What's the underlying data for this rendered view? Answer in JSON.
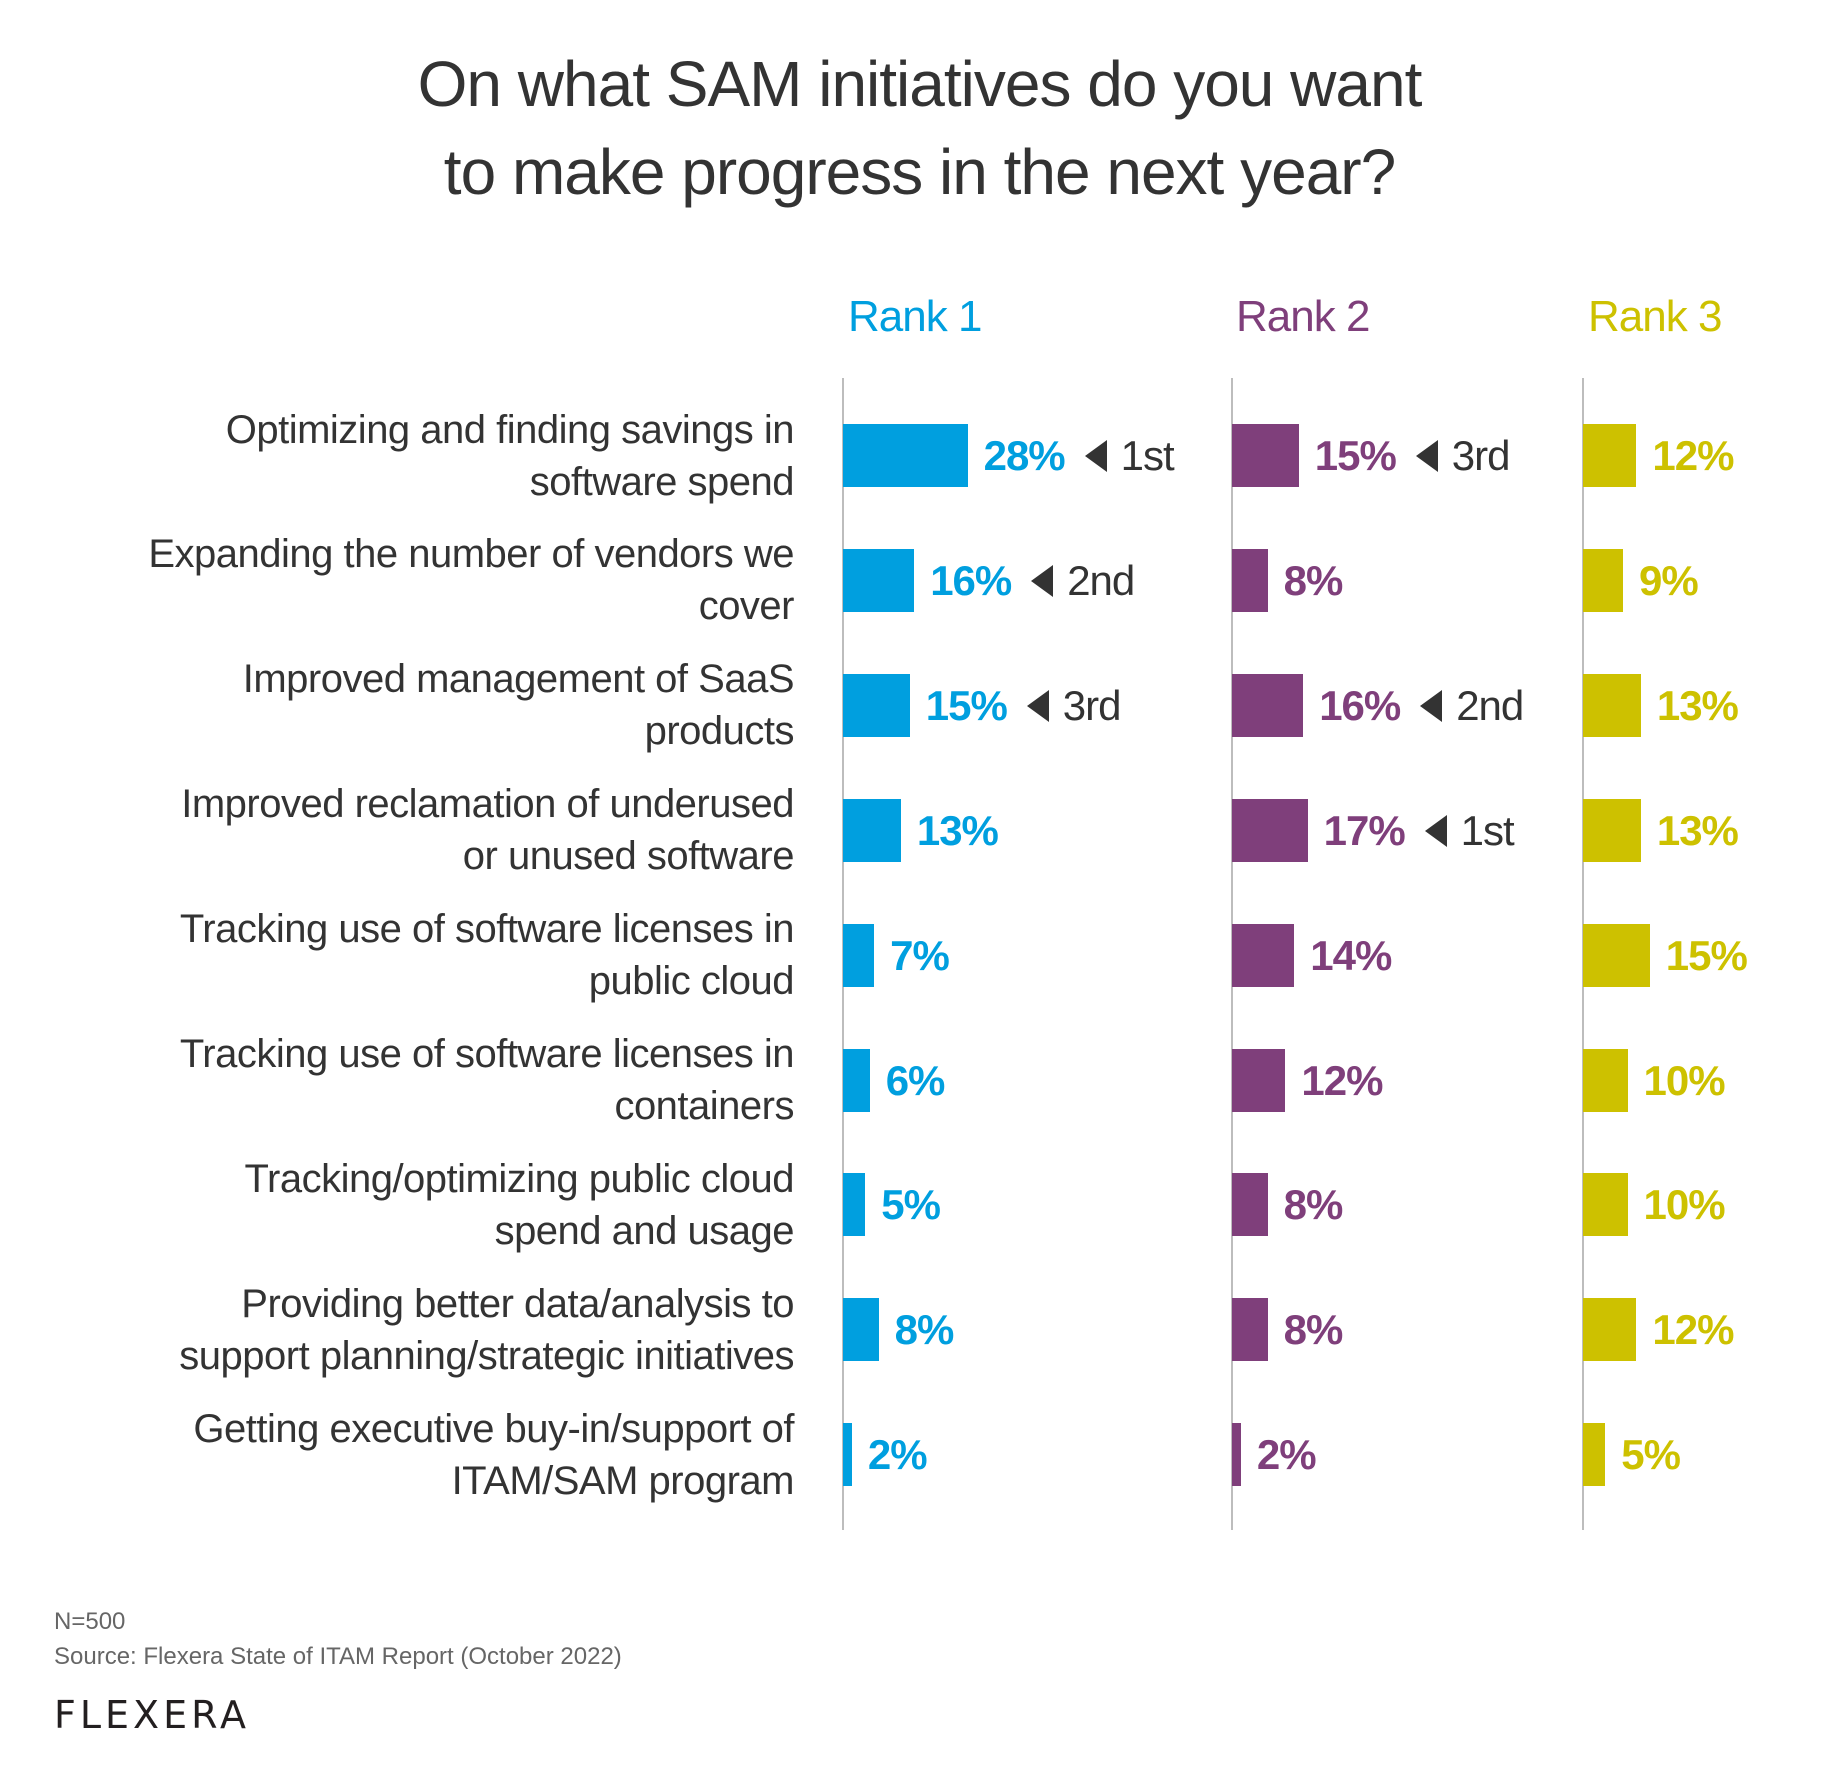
{
  "colors": {
    "rank1": "#009fdf",
    "rank2": "#7f3f7b",
    "rank3": "#cdc100",
    "text": "#333333",
    "annotation": "#333333"
  },
  "chart_data": {
    "type": "bar",
    "orientation": "horizontal",
    "title": "On what SAM initiatives do you want to make progress in the next year?",
    "title_lines": [
      "On what SAM initiatives do you want",
      "to make progress in the next year?"
    ],
    "categories": [
      "Optimizing and finding savings in software spend",
      "Expanding the number of vendors we cover",
      "Improved management of SaaS products",
      "Improved reclamation of underused or unused software",
      "Tracking use of software licenses in public cloud",
      "Tracking use of software licenses in containers",
      "Tracking/optimizing public cloud spend and usage",
      "Providing better data/analysis to support planning/strategic initiatives",
      "Getting executive buy-in/support of ITAM/SAM program"
    ],
    "category_lines": [
      [
        "Optimizing and finding savings in",
        "software spend"
      ],
      [
        "Expanding the number of vendors we",
        "cover"
      ],
      [
        "Improved management of SaaS",
        "products"
      ],
      [
        "Improved reclamation of underused",
        "or unused software"
      ],
      [
        "Tracking use of software licenses in",
        "public cloud"
      ],
      [
        "Tracking use of software licenses in",
        "containers"
      ],
      [
        "Tracking/optimizing public cloud",
        "spend and usage"
      ],
      [
        "Providing better data/analysis to",
        "support planning/strategic initiatives"
      ],
      [
        "Getting executive buy-in/support of",
        "ITAM/SAM program"
      ]
    ],
    "series": [
      {
        "name": "Rank 1",
        "values": [
          28,
          16,
          15,
          13,
          7,
          6,
          5,
          8,
          2
        ],
        "annotations": [
          "1st",
          "2nd",
          "3rd",
          null,
          null,
          null,
          null,
          null,
          null
        ]
      },
      {
        "name": "Rank 2",
        "values": [
          15,
          8,
          16,
          17,
          14,
          12,
          8,
          8,
          2
        ],
        "annotations": [
          "3rd",
          null,
          "2nd",
          "1st",
          null,
          null,
          null,
          null,
          null
        ]
      },
      {
        "name": "Rank 3",
        "values": [
          12,
          9,
          13,
          13,
          15,
          10,
          10,
          12,
          5
        ],
        "annotations": [
          null,
          null,
          null,
          null,
          null,
          null,
          null,
          null,
          null
        ]
      }
    ],
    "value_suffix": "%",
    "xlabel": "",
    "ylabel": "",
    "xlim": [
      0,
      30
    ],
    "grid": false,
    "legend": "column headers at top"
  },
  "footer": {
    "sample": "N=500",
    "source": "Source: Flexera State of ITAM Report (October 2022)",
    "logo": "FLEXERA"
  }
}
